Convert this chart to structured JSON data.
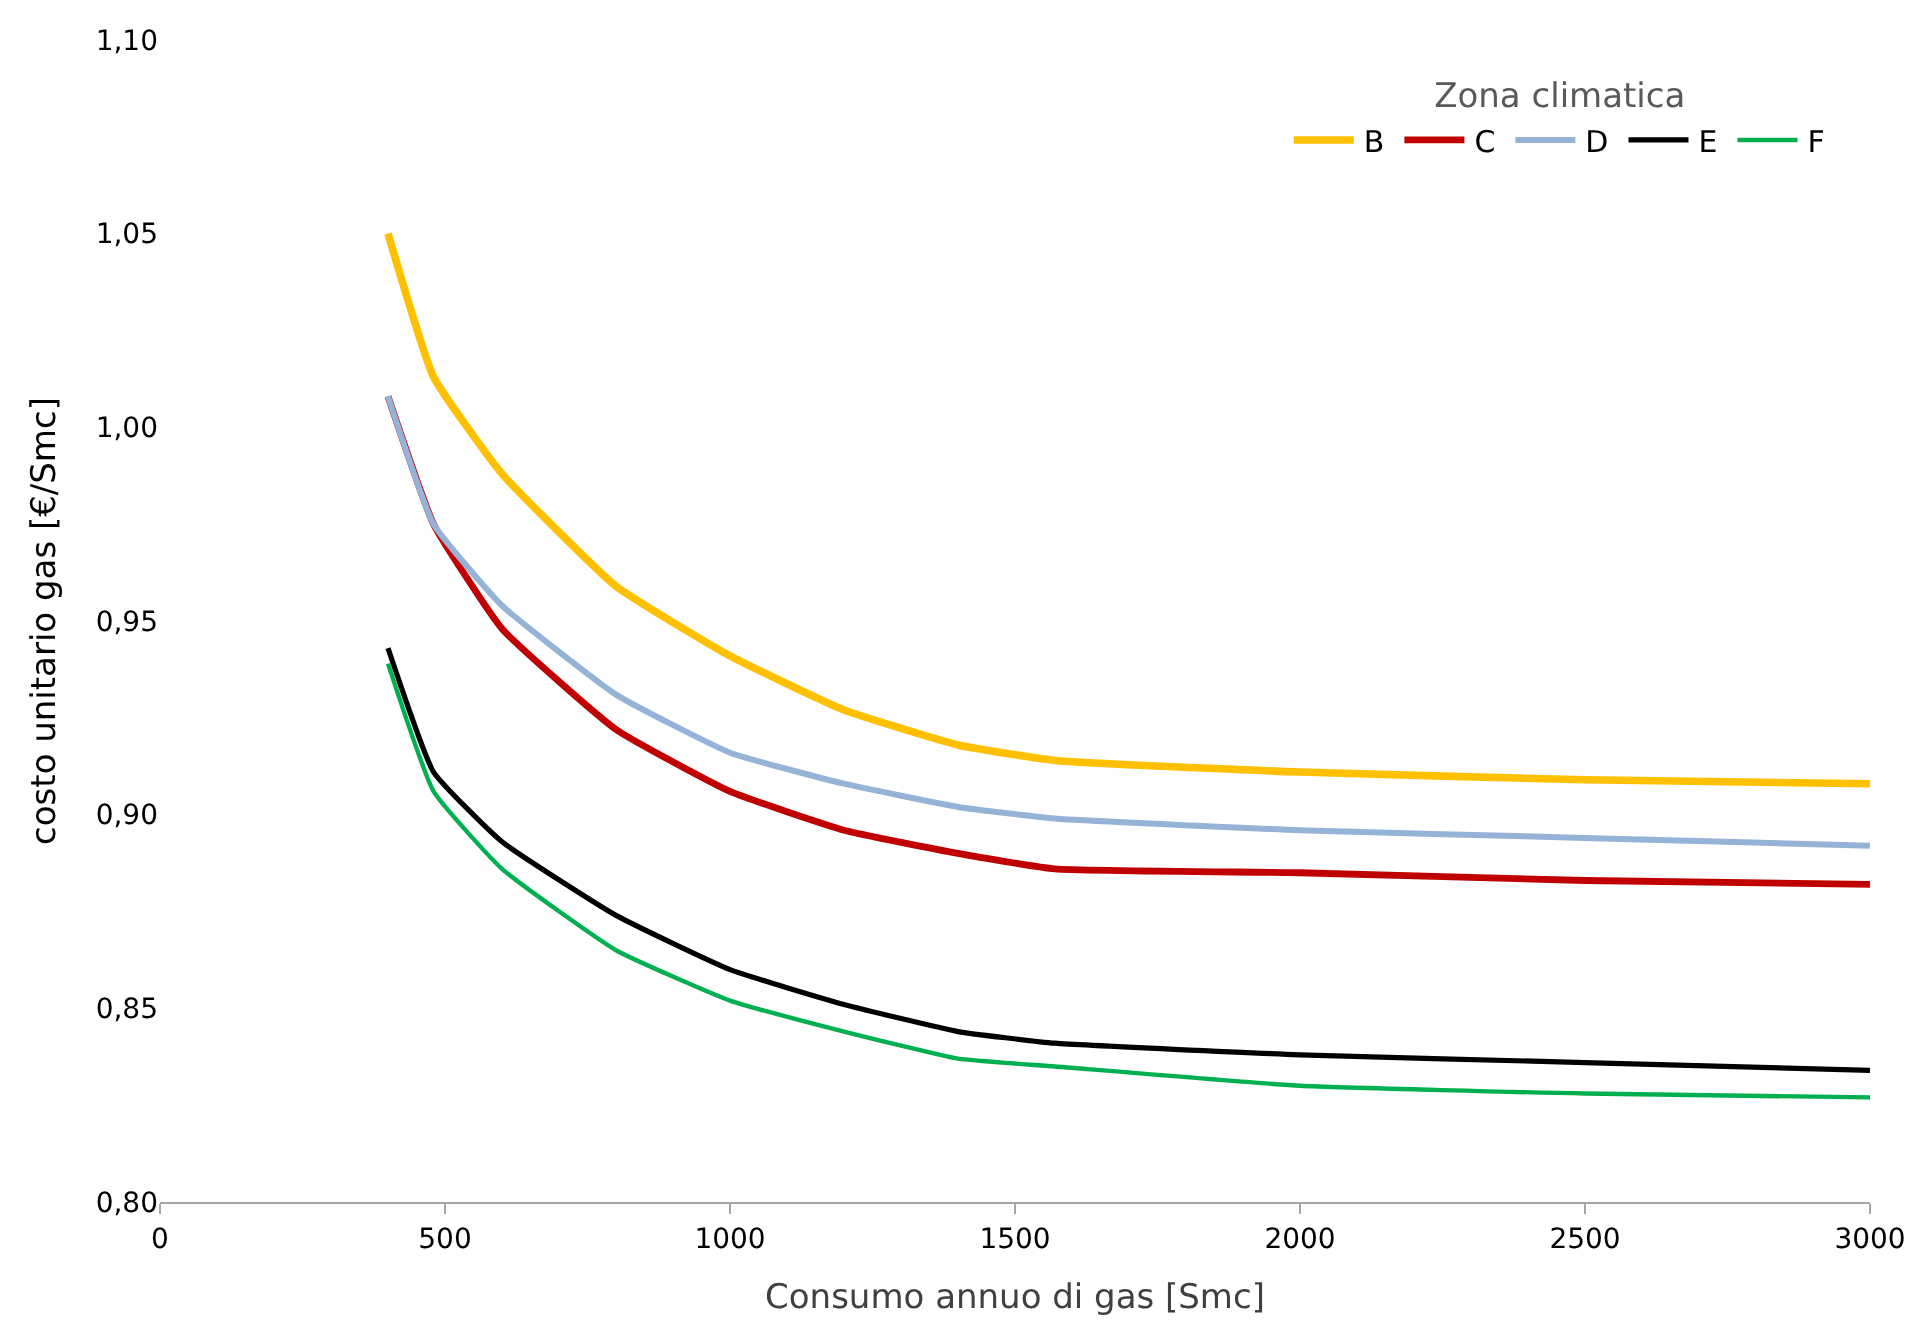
{
  "chart_data": {
    "type": "line",
    "xlabel": "Consumo annuo di gas [Smc]",
    "ylabel": "costo unitario gas [€/Smc]",
    "legend_title": "Zona climatica",
    "legend": "top right",
    "marker": "none",
    "line_style": "solid",
    "x": [
      400,
      480,
      600,
      800,
      1000,
      1200,
      1400,
      1570,
      2000,
      2500,
      3000
    ],
    "xlim": [
      0,
      3000
    ],
    "xticks": [
      0,
      500,
      1000,
      1500,
      2000,
      2500,
      3000
    ],
    "ylim": [
      0.8,
      1.1
    ],
    "yticks": [
      {
        "value": 0.8,
        "label": "0,80"
      },
      {
        "value": 0.85,
        "label": "0,85"
      },
      {
        "value": 0.9,
        "label": "0,90"
      },
      {
        "value": 0.95,
        "label": "0,95"
      },
      {
        "value": 1.0,
        "label": "1,00"
      },
      {
        "value": 1.05,
        "label": "1,05"
      },
      {
        "value": 1.1,
        "label": "1,10"
      }
    ],
    "series": [
      {
        "name": "B",
        "color": "#ffc000",
        "values": [
          1.05,
          1.013,
          0.988,
          0.959,
          0.941,
          0.927,
          0.918,
          0.914,
          0.911,
          0.909,
          0.908
        ]
      },
      {
        "name": "C",
        "color": "#c00000",
        "values": [
          1.008,
          0.975,
          0.948,
          0.922,
          0.906,
          0.896,
          0.89,
          0.886,
          0.885,
          0.883,
          0.882
        ]
      },
      {
        "name": "D",
        "color": "#95b3d7",
        "values": [
          1.008,
          0.975,
          0.954,
          0.931,
          0.916,
          0.908,
          0.902,
          0.899,
          0.896,
          0.894,
          0.892
        ]
      },
      {
        "name": "E",
        "color": "#000000",
        "values": [
          0.943,
          0.911,
          0.893,
          0.874,
          0.86,
          0.851,
          0.844,
          0.841,
          0.838,
          0.836,
          0.834
        ]
      },
      {
        "name": "F",
        "color": "#00b050",
        "values": [
          0.939,
          0.906,
          0.886,
          0.865,
          0.852,
          0.844,
          0.837,
          0.835,
          0.83,
          0.828,
          0.827
        ]
      }
    ]
  }
}
